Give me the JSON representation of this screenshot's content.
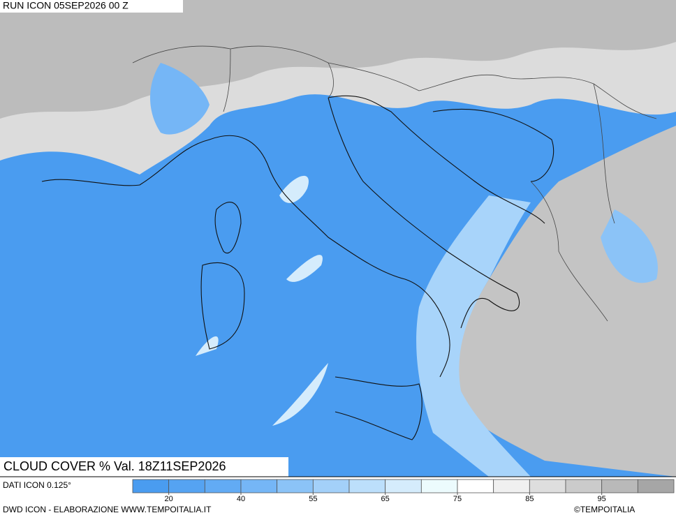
{
  "header": {
    "run": "RUN ICON 05SEP2026 00 Z"
  },
  "title": "CLOUD COVER % Val. 18Z11SEP2026",
  "source": "DATI ICON 0.125°",
  "legend": {
    "colors": [
      "#4a9cf0",
      "#55a3f2",
      "#62abf4",
      "#75b6f6",
      "#8bc3f7",
      "#a3d0f9",
      "#bcdffb",
      "#d5ecfc",
      "#ecfbfd",
      "#ffffff",
      "#f0f0f0",
      "#dedede",
      "#cbcbcb",
      "#b9b9b9",
      "#a6a6a6"
    ],
    "ticks": [
      20,
      40,
      55,
      65,
      75,
      85,
      95
    ]
  },
  "footer": {
    "credit": "DWD ICON - ELABORAZIONE WWW.TEMPOITALIA.IT",
    "copyright": "©TEMPOITALIA"
  }
}
